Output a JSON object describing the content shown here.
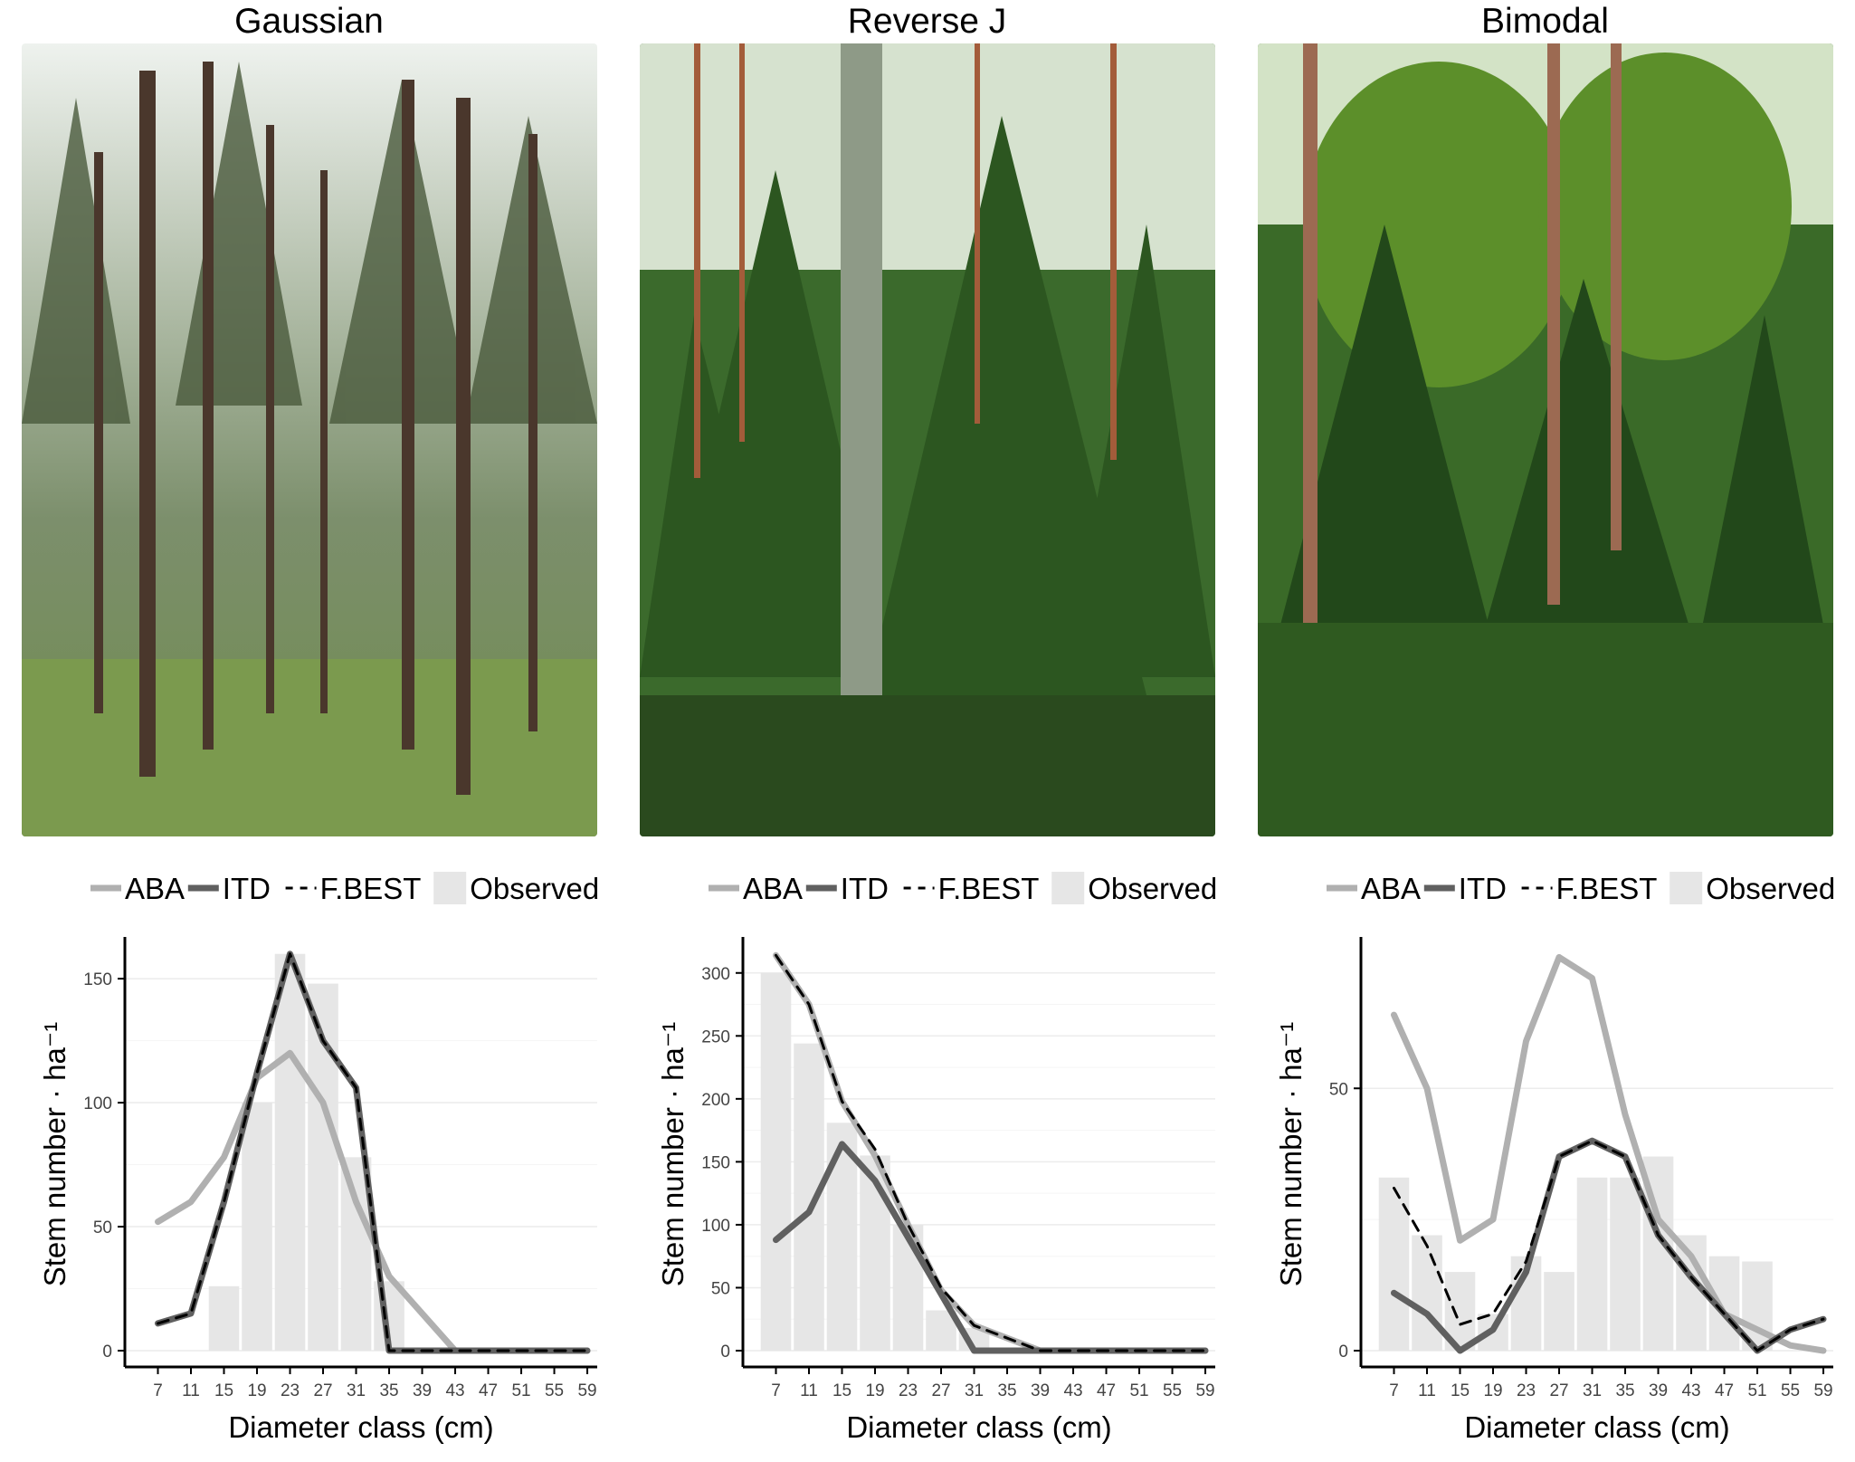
{
  "legend": {
    "aba": "ABA",
    "itd": "ITD",
    "fbest": "F.BEST",
    "observed": "Observed"
  },
  "colors": {
    "aba": "#b0b0b0",
    "itd": "#606060",
    "fbest": "#000000",
    "observed": "#e6e6e6"
  },
  "panels": [
    {
      "title": "Gaussian",
      "photo": {
        "description": "Even-aged spruce stand with tall straight trunks and grassy floor",
        "palette": [
          "#e9eee9",
          "#6e7f5e",
          "#4b3a30",
          "#8aa35b"
        ]
      },
      "chart_data": {
        "type": "line",
        "xlabel": "Diameter class (cm)",
        "ylabel": "Stem number · ha⁻¹",
        "categories": [
          7,
          11,
          15,
          19,
          23,
          27,
          31,
          35,
          39,
          43,
          47,
          51,
          55,
          59
        ],
        "yticks": [
          0,
          50,
          100,
          150
        ],
        "ylim": [
          0,
          165
        ],
        "observed": [
          0,
          0,
          26,
          100,
          160,
          148,
          78,
          28,
          0,
          0,
          0,
          0,
          0,
          0
        ],
        "series": [
          {
            "name": "ABA",
            "style": "solid-light",
            "values": [
              52,
              60,
              78,
              110,
              120,
              100,
              60,
              30,
              15,
              0,
              0,
              0,
              0,
              0
            ]
          },
          {
            "name": "ITD",
            "style": "solid-dark",
            "values": [
              11,
              15,
              60,
              112,
              160,
              125,
              106,
              0,
              0,
              0,
              0,
              0,
              0,
              0
            ]
          },
          {
            "name": "F.BEST",
            "style": "dashed-black",
            "values": [
              11,
              15,
              60,
              112,
              160,
              125,
              106,
              0,
              0,
              0,
              0,
              0,
              0,
              0
            ]
          }
        ],
        "grid": true
      }
    },
    {
      "title": "Reverse J",
      "photo": {
        "description": "Uneven-aged mixed stand with birch trunk and dense young spruce",
        "palette": [
          "#dfe8dc",
          "#2f5a25",
          "#7a8e72",
          "#9c5a3a"
        ]
      },
      "chart_data": {
        "type": "line",
        "xlabel": "Diameter class (cm)",
        "ylabel": "Stem number · ha⁻¹",
        "categories": [
          7,
          11,
          15,
          19,
          23,
          27,
          31,
          35,
          39,
          43,
          47,
          51,
          55,
          59
        ],
        "yticks": [
          0,
          50,
          100,
          150,
          200,
          250,
          300
        ],
        "ylim": [
          0,
          325
        ],
        "observed": [
          300,
          244,
          181,
          155,
          100,
          32,
          18,
          0,
          0,
          0,
          0,
          0,
          0,
          0
        ],
        "series": [
          {
            "name": "ABA",
            "style": "solid-light",
            "values": [
              314,
              275,
              198,
              155,
              100,
              48,
              20,
              10,
              0,
              0,
              0,
              0,
              0,
              0
            ]
          },
          {
            "name": "ITD",
            "style": "solid-dark",
            "values": [
              88,
              110,
              164,
              135,
              90,
              45,
              0,
              0,
              0,
              0,
              0,
              0,
              0,
              0
            ]
          },
          {
            "name": "F.BEST",
            "style": "dashed-black",
            "values": [
              314,
              275,
              198,
              160,
              100,
              50,
              20,
              10,
              0,
              0,
              0,
              0,
              0,
              0
            ]
          }
        ],
        "grid": true
      }
    },
    {
      "title": "Bimodal",
      "photo": {
        "description": "Two-layered stand with tall pines over spruce and blueberry understory",
        "palette": [
          "#dce9d4",
          "#2a5a1e",
          "#5d8a2e",
          "#9a6b52"
        ]
      },
      "chart_data": {
        "type": "line",
        "xlabel": "Diameter class (cm)",
        "ylabel": "Stem number · ha⁻¹",
        "categories": [
          7,
          11,
          15,
          19,
          23,
          27,
          31,
          35,
          39,
          43,
          47,
          51,
          55,
          59
        ],
        "yticks": [
          0,
          50
        ],
        "ylim": [
          0,
          78
        ],
        "observed": [
          33,
          22,
          15,
          7,
          18,
          15,
          33,
          33,
          37,
          22,
          18,
          17,
          0,
          0
        ],
        "series": [
          {
            "name": "ABA",
            "style": "solid-light",
            "values": [
              64,
              50,
              21,
              25,
              59,
              75,
              71,
              45,
              25,
              18,
              7,
              4,
              1,
              0
            ]
          },
          {
            "name": "ITD",
            "style": "solid-dark",
            "values": [
              11,
              7,
              0,
              4,
              15,
              37,
              40,
              37,
              22,
              14,
              7,
              0,
              4,
              6
            ]
          },
          {
            "name": "F.BEST",
            "style": "dashed-black",
            "values": [
              31,
              20,
              5,
              7,
              17,
              37,
              40,
              37,
              22,
              14,
              7,
              0,
              4,
              6
            ]
          }
        ],
        "grid": true
      }
    }
  ]
}
